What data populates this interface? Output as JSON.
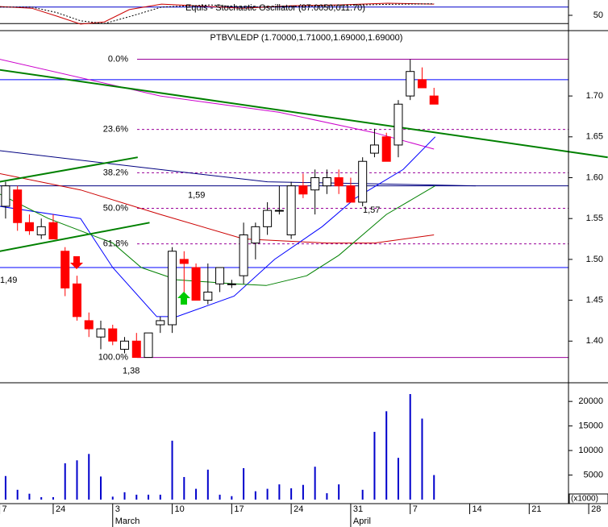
{
  "chart_data": [
    {
      "type": "oscillator",
      "title": "Equis - Stochastic Oscillator (87.0050,011.70)",
      "xlim": [
        -0.47,
        47.3
      ],
      "ylim": [
        0,
        100
      ],
      "yticks": [
        50
      ],
      "levels": [
        20,
        80
      ],
      "series": [
        {
          "color": "#cc0000",
          "x": [
            -0.5,
            2.2,
            4.3,
            6.3,
            8.3,
            10.4,
            13.1,
            17.2,
            19.9,
            24,
            28,
            32.1,
            36
          ],
          "values": [
            82,
            76,
            47,
            18,
            26,
            71,
            91,
            82,
            76,
            85,
            88,
            94,
            91
          ]
        },
        {
          "color": "#000000",
          "dashed": true,
          "x": [
            -0.5,
            2.2,
            4.3,
            6.3,
            8.3,
            10.4,
            13.1,
            17.2,
            19.9,
            24,
            28,
            32.1,
            36
          ],
          "values": [
            80,
            80,
            60,
            30,
            20,
            45,
            80,
            88,
            80,
            82,
            86,
            90,
            92
          ]
        }
      ]
    },
    {
      "type": "candlestick",
      "title": "PTBV\\LEDP (1.70000,1.71000,1.69000,1.69000)",
      "xlim": [
        -0.47,
        47.3
      ],
      "ylim": [
        1.349,
        1.78
      ],
      "yticks": [
        {
          "value": 1.4,
          "label": "1.40"
        },
        1.45,
        {
          "value": 1.5,
          "label": "1.50"
        },
        1.55,
        {
          "value": 1.6,
          "label": "1.60"
        },
        1.65,
        {
          "value": 1.7,
          "label": "1.70"
        }
      ],
      "up_color": "#ffffff",
      "down_color": "#ff0000",
      "x": [
        0,
        1,
        2,
        3,
        4,
        5,
        6,
        7,
        8,
        9,
        10,
        11,
        12,
        13,
        14,
        15,
        16,
        17,
        18,
        19,
        20,
        21,
        22,
        23,
        24,
        25,
        26,
        27,
        28,
        29,
        30,
        31,
        32,
        33,
        34,
        35,
        36
      ],
      "open": [
        1.565,
        1.585,
        1.545,
        1.53,
        1.545,
        1.51,
        1.47,
        1.425,
        1.405,
        1.415,
        1.39,
        1.4,
        1.38,
        1.42,
        1.42,
        1.5,
        1.49,
        1.45,
        1.47,
        1.47,
        1.48,
        1.52,
        1.54,
        1.56,
        1.53,
        1.59,
        1.585,
        1.59,
        1.6,
        1.59,
        1.57,
        1.63,
        1.65,
        1.64,
        1.7,
        1.72,
        1.7
      ],
      "high": [
        1.595,
        1.59,
        1.555,
        1.55,
        1.555,
        1.515,
        1.48,
        1.435,
        1.425,
        1.42,
        1.405,
        1.41,
        1.41,
        1.43,
        1.515,
        1.51,
        1.495,
        1.495,
        1.49,
        1.475,
        1.545,
        1.545,
        1.57,
        1.59,
        1.595,
        1.605,
        1.61,
        1.61,
        1.61,
        1.6,
        1.625,
        1.66,
        1.655,
        1.695,
        1.745,
        1.735,
        1.71
      ],
      "low": [
        1.55,
        1.535,
        1.53,
        1.525,
        1.525,
        1.455,
        1.425,
        1.405,
        1.39,
        1.395,
        1.385,
        1.38,
        1.38,
        1.41,
        1.41,
        1.455,
        1.45,
        1.445,
        1.46,
        1.465,
        1.47,
        1.5,
        1.53,
        1.555,
        1.525,
        1.575,
        1.555,
        1.58,
        1.58,
        1.57,
        1.565,
        1.625,
        1.62,
        1.625,
        1.695,
        1.71,
        1.69
      ],
      "close": [
        1.59,
        1.545,
        1.535,
        1.54,
        1.525,
        1.465,
        1.43,
        1.415,
        1.415,
        1.4,
        1.4,
        1.38,
        1.41,
        1.425,
        1.51,
        1.495,
        1.45,
        1.46,
        1.49,
        1.47,
        1.53,
        1.54,
        1.56,
        1.56,
        1.59,
        1.58,
        1.6,
        1.6,
        1.59,
        1.57,
        1.62,
        1.64,
        1.62,
        1.69,
        1.73,
        1.71,
        1.69
      ],
      "overlays": [
        {
          "color": "#cc00cc",
          "x": [
            -0.5,
            13,
            23,
            31,
            36
          ],
          "values": [
            1.745,
            1.7,
            1.68,
            1.655,
            1.635
          ]
        },
        {
          "color": "#000080",
          "x": [
            -0.5,
            13,
            22,
            39.5
          ],
          "values": [
            1.633,
            1.61,
            1.595,
            1.59
          ]
        },
        {
          "color": "#cc0000",
          "x": [
            -0.5,
            6.3,
            13,
            20,
            27,
            31,
            36
          ],
          "values": [
            1.605,
            1.585,
            1.555,
            1.525,
            1.52,
            1.52,
            1.53
          ]
        },
        {
          "color": "#0000ff",
          "x": [
            -0.5,
            6.3,
            9,
            12.7,
            14.4,
            19.2,
            22.6,
            26.6,
            29.4,
            33.4,
            36.1
          ],
          "values": [
            1.565,
            1.55,
            1.49,
            1.43,
            1.43,
            1.455,
            1.5,
            1.54,
            1.575,
            1.61,
            1.65
          ]
        },
        {
          "color": "#008000",
          "x": [
            -0.5,
            3.6,
            9,
            11.4,
            14.4,
            19.2,
            21.9,
            25.3,
            28,
            32,
            36.1
          ],
          "values": [
            1.58,
            1.55,
            1.52,
            1.49,
            1.475,
            1.47,
            1.468,
            1.48,
            1.505,
            1.555,
            1.59
          ]
        }
      ],
      "trendlines": [
        {
          "color": "#008000",
          "x": [
            -0.5,
            50.6
          ],
          "values": [
            1.732,
            1.625
          ]
        },
        {
          "color": "#008000",
          "x": [
            -0.5,
            11.1
          ],
          "values": [
            1.595,
            1.625
          ]
        },
        {
          "color": "#008000",
          "x": [
            -0.5,
            12.1
          ],
          "values": [
            1.51,
            1.545
          ]
        }
      ],
      "hlines": [
        {
          "price": 1.72,
          "color": "#0000ff"
        },
        {
          "price": 1.59,
          "color": "#000080"
        },
        {
          "price": 1.49,
          "color": "#0000ff"
        }
      ],
      "fib_levels": [
        {
          "level_label": "0.0%",
          "price": 1.745
        },
        {
          "level_label": "23.6%",
          "price": 1.659
        },
        {
          "level_label": "38.2%",
          "price": 1.606
        },
        {
          "level_label": "50.0%",
          "price": 1.5625
        },
        {
          "level_label": "61.8%",
          "price": 1.519
        },
        {
          "level_label": "100.0%",
          "price": 1.38
        }
      ],
      "fib_color": "#990099",
      "price_labels": [
        {
          "text": "1,59",
          "price": 1.59
        },
        {
          "text": "1,49",
          "price": 1.49
        },
        {
          "text": "1,57",
          "price": 1.57
        },
        {
          "text": "1,38",
          "price": 1.38
        }
      ]
    },
    {
      "type": "bar",
      "xlim": [
        -0.47,
        47.3
      ],
      "ylim": [
        0,
        23800
      ],
      "yticks": [
        5000,
        10000,
        15000,
        20000
      ],
      "unit_label": "(x1000)",
      "color": "#0000cc",
      "x": [
        0,
        1,
        2,
        3,
        4,
        5,
        6,
        7,
        8,
        9,
        10,
        11,
        12,
        13,
        14,
        15,
        16,
        17,
        18,
        19,
        20,
        21,
        22,
        23,
        24,
        25,
        26,
        27,
        28,
        29,
        30,
        31,
        32,
        33,
        34,
        35,
        36
      ],
      "values": [
        4800,
        2000,
        1200,
        500,
        500,
        7400,
        8000,
        9300,
        4700,
        600,
        1500,
        1000,
        1000,
        1000,
        12000,
        4600,
        2200,
        6100,
        1000,
        700,
        6400,
        1700,
        2200,
        3100,
        2300,
        3000,
        6700,
        1300,
        3100,
        null,
        2000,
        13800,
        18000,
        8500,
        21500,
        16500,
        5000
      ],
      "xticks": [
        {
          "value": -0.5,
          "label": "7"
        },
        {
          "value": 4,
          "label": "24"
        },
        {
          "value": 9,
          "label": "3"
        },
        {
          "value": 14,
          "label": "10"
        },
        {
          "value": 19,
          "label": "17"
        },
        {
          "value": 24,
          "label": "24"
        },
        {
          "value": 29,
          "label": "31"
        },
        {
          "value": 34,
          "label": "7"
        },
        {
          "value": 39,
          "label": "14"
        },
        {
          "value": 44,
          "label": "21"
        },
        {
          "value": 49,
          "label": "28"
        }
      ],
      "month_labels": [
        {
          "value": 9,
          "label": "March"
        },
        {
          "value": 29,
          "label": "April"
        }
      ]
    }
  ]
}
